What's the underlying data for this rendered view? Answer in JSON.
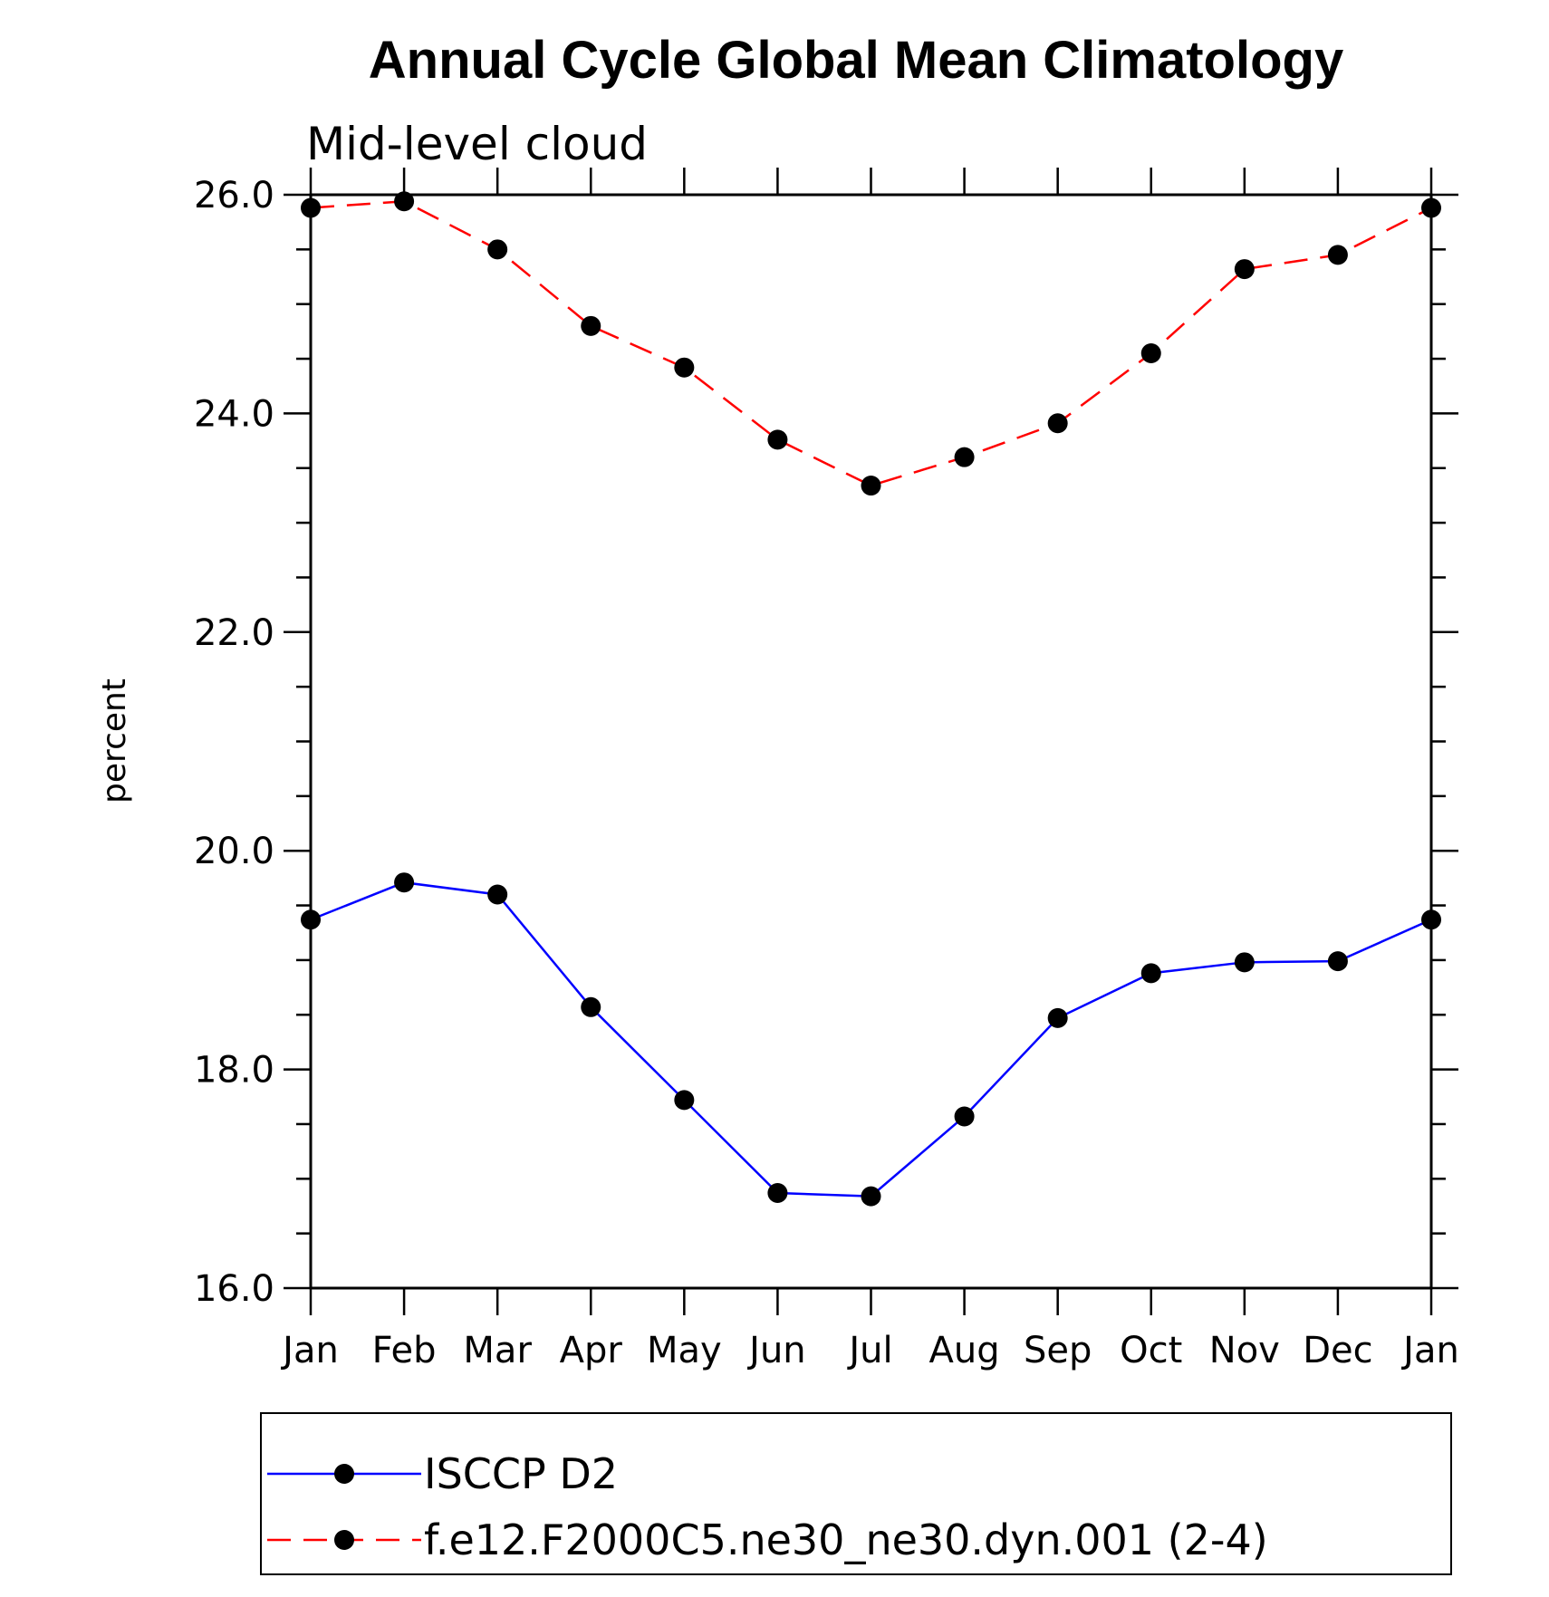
{
  "chart_data": {
    "type": "line",
    "title": "Annual Cycle Global Mean Climatology",
    "subtitle": "Mid-level cloud",
    "xlabel": "",
    "ylabel": "percent",
    "categories": [
      "Jan",
      "Feb",
      "Mar",
      "Apr",
      "May",
      "Jun",
      "Jul",
      "Aug",
      "Sep",
      "Oct",
      "Nov",
      "Dec",
      "Jan"
    ],
    "ylim": [
      16.0,
      26.0
    ],
    "yticks": [
      "16.0",
      "18.0",
      "20.0",
      "22.0",
      "24.0",
      "26.0"
    ],
    "grid": false,
    "legend_position": "bottom",
    "series": [
      {
        "name": "ISCCP D2",
        "color": "#0000ff",
        "dash": "solid",
        "marker": "filled-circle",
        "values": [
          19.37,
          19.71,
          19.6,
          18.57,
          17.72,
          16.87,
          16.84,
          17.57,
          18.47,
          18.88,
          18.98,
          18.99,
          19.37
        ]
      },
      {
        "name": "f.e12.F2000C5.ne30_ne30.dyn.001 (2-4)",
        "color": "#ff0000",
        "dash": "dashed",
        "marker": "filled-circle",
        "values": [
          25.88,
          25.94,
          25.5,
          24.8,
          24.42,
          23.76,
          23.34,
          23.6,
          23.91,
          24.55,
          25.32,
          25.45,
          25.88
        ]
      }
    ]
  }
}
